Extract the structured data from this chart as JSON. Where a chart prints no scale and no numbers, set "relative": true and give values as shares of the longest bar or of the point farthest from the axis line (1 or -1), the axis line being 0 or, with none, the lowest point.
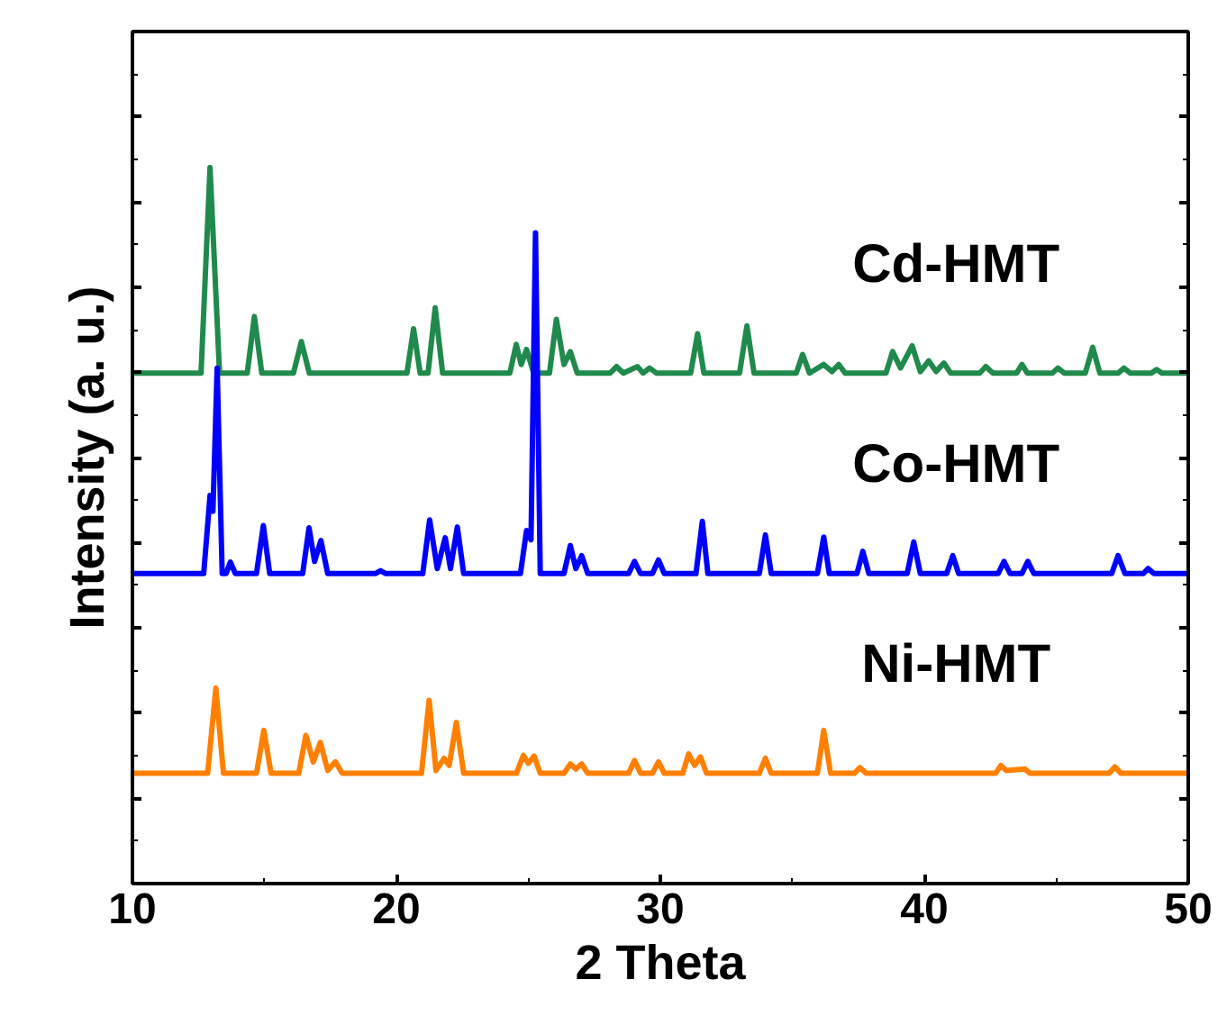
{
  "chart_data": {
    "type": "line",
    "relative": true,
    "xlabel": "2 Theta",
    "ylabel": "Intensity (a. u.)",
    "xlim": [
      10,
      50
    ],
    "xticks": [
      10,
      20,
      30,
      40,
      50
    ],
    "grid": false,
    "series": [
      {
        "name": "Cd-HMT",
        "color": "#1f8a4c",
        "x": [
          10,
          12.6,
          12.94,
          13.3,
          14.35,
          14.62,
          14.9,
          16.1,
          16.4,
          16.7,
          20.4,
          20.65,
          20.9,
          21.2,
          21.47,
          21.75,
          24.3,
          24.54,
          24.73,
          24.93,
          25.2,
          25.8,
          26.06,
          26.35,
          26.59,
          26.85,
          28.1,
          28.34,
          28.6,
          29.13,
          29.35,
          29.59,
          29.85,
          31.15,
          31.41,
          31.65,
          33.0,
          33.28,
          33.55,
          35.15,
          35.39,
          35.65,
          36.19,
          36.5,
          36.76,
          37.0,
          38.55,
          38.8,
          39.1,
          39.54,
          39.85,
          40.17,
          40.45,
          40.74,
          41.0,
          42.1,
          42.33,
          42.6,
          43.5,
          43.7,
          43.9,
          44.85,
          45.06,
          45.3,
          46.1,
          46.38,
          46.65,
          47.35,
          47.56,
          47.8,
          48.6,
          48.8,
          49.0,
          50
        ],
        "values": [
          0.713,
          0.713,
          1.0,
          0.713,
          0.713,
          0.792,
          0.713,
          0.713,
          0.757,
          0.713,
          0.713,
          0.775,
          0.713,
          0.713,
          0.804,
          0.713,
          0.713,
          0.753,
          0.725,
          0.746,
          0.713,
          0.713,
          0.788,
          0.725,
          0.743,
          0.713,
          0.713,
          0.722,
          0.713,
          0.722,
          0.713,
          0.72,
          0.713,
          0.713,
          0.768,
          0.713,
          0.713,
          0.779,
          0.713,
          0.713,
          0.739,
          0.713,
          0.725,
          0.715,
          0.725,
          0.713,
          0.713,
          0.743,
          0.72,
          0.751,
          0.715,
          0.73,
          0.715,
          0.727,
          0.713,
          0.713,
          0.722,
          0.713,
          0.713,
          0.725,
          0.713,
          0.713,
          0.72,
          0.713,
          0.713,
          0.749,
          0.713,
          0.713,
          0.72,
          0.713,
          0.713,
          0.718,
          0.713,
          0.713
        ]
      },
      {
        "name": "Co-HMT",
        "color": "#0000ff",
        "x": [
          10,
          12.7,
          12.94,
          13.05,
          13.21,
          13.4,
          13.55,
          13.71,
          13.9,
          14.7,
          14.96,
          15.2,
          16.45,
          16.69,
          16.9,
          17.14,
          17.4,
          19.2,
          19.4,
          19.6,
          21.0,
          21.26,
          21.55,
          21.85,
          22.05,
          22.31,
          22.55,
          24.7,
          24.93,
          25.1,
          25.27,
          25.45,
          26.35,
          26.59,
          26.8,
          27.02,
          27.25,
          28.8,
          29.02,
          29.25,
          29.7,
          29.93,
          30.15,
          31.35,
          31.59,
          31.8,
          33.75,
          33.98,
          34.2,
          35.95,
          36.19,
          36.4,
          37.45,
          37.67,
          37.9,
          39.35,
          39.6,
          39.85,
          40.85,
          41.08,
          41.3,
          42.8,
          43.02,
          43.25,
          43.7,
          43.92,
          44.15,
          47.1,
          47.34,
          47.6,
          48.3,
          48.48,
          48.7,
          50
        ],
        "values": [
          0.433,
          0.433,
          0.542,
          0.52,
          0.72,
          0.433,
          0.433,
          0.449,
          0.433,
          0.433,
          0.5,
          0.433,
          0.433,
          0.497,
          0.45,
          0.479,
          0.433,
          0.433,
          0.437,
          0.433,
          0.433,
          0.508,
          0.44,
          0.483,
          0.44,
          0.498,
          0.433,
          0.433,
          0.493,
          0.48,
          0.909,
          0.433,
          0.433,
          0.472,
          0.44,
          0.458,
          0.433,
          0.433,
          0.45,
          0.433,
          0.433,
          0.452,
          0.433,
          0.433,
          0.506,
          0.433,
          0.433,
          0.487,
          0.433,
          0.433,
          0.484,
          0.433,
          0.433,
          0.464,
          0.433,
          0.433,
          0.477,
          0.433,
          0.433,
          0.458,
          0.433,
          0.433,
          0.45,
          0.433,
          0.433,
          0.45,
          0.433,
          0.433,
          0.458,
          0.433,
          0.433,
          0.44,
          0.433,
          0.433
        ]
      },
      {
        "name": "Ni-HMT",
        "color": "#ff8000",
        "x": [
          10,
          12.85,
          13.16,
          13.45,
          14.7,
          14.98,
          15.25,
          16.3,
          16.57,
          16.85,
          17.12,
          17.4,
          17.69,
          17.95,
          20.95,
          21.24,
          21.5,
          21.81,
          22.0,
          22.27,
          22.55,
          24.55,
          24.81,
          25.0,
          25.22,
          25.45,
          26.35,
          26.59,
          26.8,
          27.02,
          27.25,
          28.8,
          29.02,
          29.25,
          29.7,
          29.93,
          30.15,
          30.85,
          31.07,
          31.3,
          31.52,
          31.75,
          33.75,
          33.98,
          34.2,
          35.95,
          36.19,
          36.45,
          37.35,
          37.56,
          37.8,
          42.7,
          42.9,
          43.1,
          43.81,
          44.0,
          47.0,
          47.22,
          47.45,
          50
        ],
        "values": [
          0.154,
          0.154,
          0.273,
          0.154,
          0.154,
          0.214,
          0.154,
          0.154,
          0.207,
          0.17,
          0.197,
          0.158,
          0.17,
          0.154,
          0.154,
          0.256,
          0.158,
          0.175,
          0.165,
          0.225,
          0.154,
          0.154,
          0.179,
          0.168,
          0.178,
          0.154,
          0.154,
          0.167,
          0.16,
          0.167,
          0.154,
          0.154,
          0.172,
          0.154,
          0.154,
          0.17,
          0.154,
          0.154,
          0.181,
          0.165,
          0.177,
          0.154,
          0.154,
          0.175,
          0.154,
          0.154,
          0.214,
          0.154,
          0.154,
          0.162,
          0.154,
          0.154,
          0.165,
          0.158,
          0.16,
          0.154,
          0.154,
          0.163,
          0.154,
          0.154
        ]
      }
    ]
  }
}
